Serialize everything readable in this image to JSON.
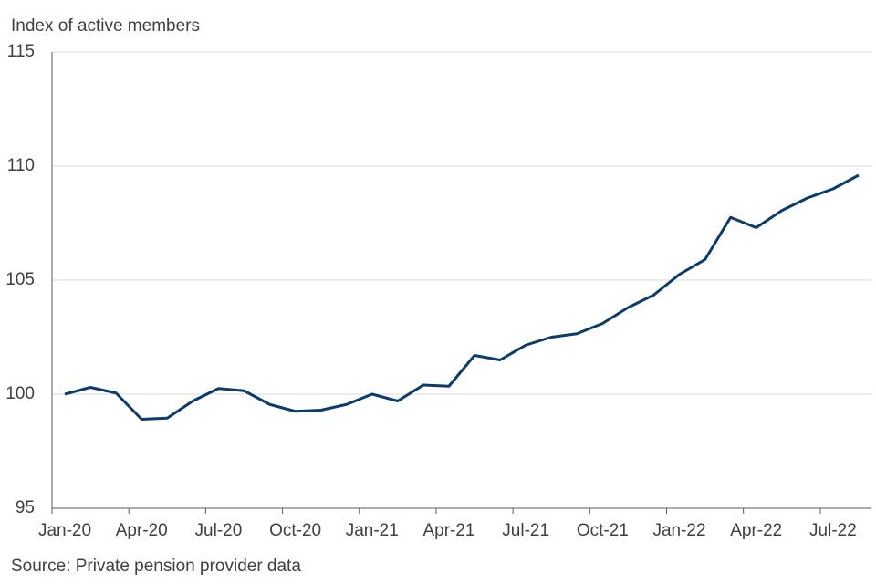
{
  "chart_data": {
    "type": "line",
    "y_label": "Index of active members",
    "source": "Source: Private pension provider data",
    "categories": [
      "Jan-20",
      null,
      null,
      "Apr-20",
      null,
      null,
      "Jul-20",
      null,
      null,
      "Oct-20",
      null,
      null,
      "Jan-21",
      null,
      null,
      "Apr-21",
      null,
      null,
      "Jul-21",
      null,
      null,
      "Oct-21",
      null,
      null,
      "Jan-22",
      null,
      null,
      "Apr-22",
      null,
      null,
      "Jul-22",
      null
    ],
    "series": [
      {
        "name": "Index of active members",
        "color": "#0b3c6b",
        "values": [
          100.0,
          100.3,
          100.05,
          98.9,
          98.95,
          99.7,
          100.25,
          100.15,
          99.55,
          99.25,
          99.3,
          99.55,
          100.0,
          99.7,
          100.4,
          100.35,
          101.7,
          101.5,
          102.15,
          102.5,
          102.65,
          103.1,
          103.8,
          104.35,
          105.25,
          105.9,
          107.75,
          107.3,
          108.05,
          108.6,
          109.0,
          109.6
        ]
      }
    ],
    "ylim": [
      95,
      115
    ],
    "yticks": [
      95,
      100,
      105,
      110,
      115
    ],
    "grid": true
  }
}
